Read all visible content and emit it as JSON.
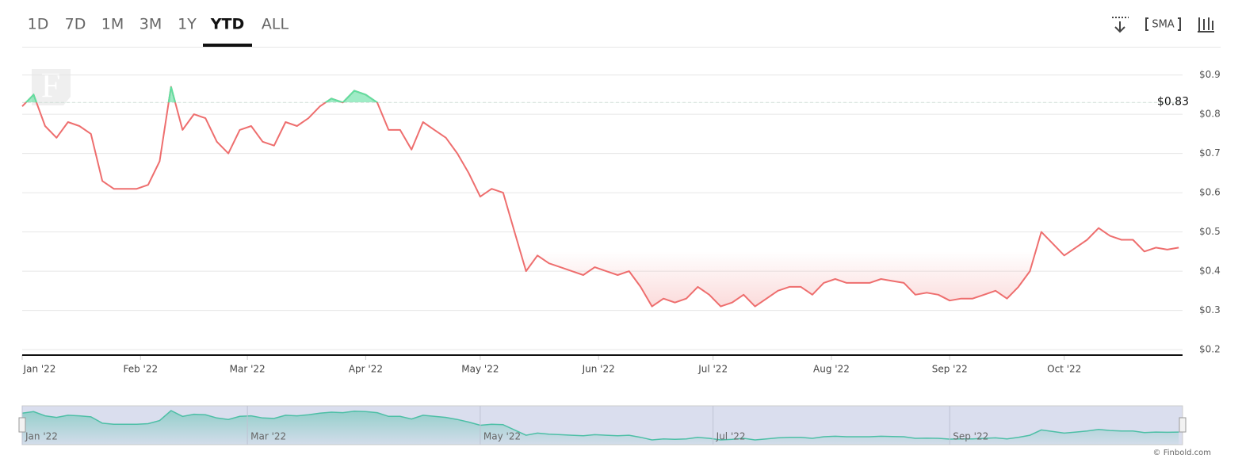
{
  "chart_data": {
    "type": "line",
    "ranges": [
      "1D",
      "7D",
      "1M",
      "3M",
      "1Y",
      "YTD",
      "ALL"
    ],
    "active_range": 5,
    "sma_label": "SMA",
    "watermark": "F",
    "credit": "© Finbold.com",
    "color": "#ee6e6e",
    "up_color": "#5fe0a0",
    "baseline": {
      "value": 0.83,
      "label": "$0.83"
    },
    "x": [
      0,
      3,
      6,
      9,
      12,
      15,
      18,
      21,
      24,
      27,
      30,
      33,
      36,
      39,
      42,
      45,
      48,
      51,
      54,
      57,
      60,
      63,
      66,
      69,
      72,
      75,
      78,
      81,
      84,
      87,
      90,
      93,
      96,
      99,
      102,
      105,
      108,
      111,
      114,
      117,
      120,
      123,
      126,
      129,
      132,
      135,
      138,
      141,
      144,
      147,
      150,
      153,
      156,
      159,
      162,
      165,
      168,
      171,
      174,
      177,
      180,
      183,
      186,
      189,
      192,
      195,
      198,
      201,
      204,
      207,
      210,
      213,
      216,
      219,
      222,
      225,
      228,
      231,
      234,
      237,
      240,
      243,
      246,
      249,
      252,
      255,
      258,
      261,
      264,
      267,
      270,
      273,
      276,
      279,
      282,
      285,
      288,
      291,
      294,
      297,
      300,
      303
    ],
    "values": [
      0.82,
      0.85,
      0.77,
      0.74,
      0.78,
      0.77,
      0.75,
      0.63,
      0.61,
      0.61,
      0.61,
      0.62,
      0.68,
      0.87,
      0.76,
      0.8,
      0.79,
      0.73,
      0.7,
      0.76,
      0.77,
      0.73,
      0.72,
      0.78,
      0.77,
      0.79,
      0.82,
      0.84,
      0.83,
      0.86,
      0.85,
      0.83,
      0.76,
      0.76,
      0.71,
      0.78,
      0.76,
      0.74,
      0.7,
      0.65,
      0.59,
      0.61,
      0.6,
      0.5,
      0.4,
      0.44,
      0.42,
      0.41,
      0.4,
      0.39,
      0.41,
      0.4,
      0.39,
      0.4,
      0.36,
      0.31,
      0.33,
      0.32,
      0.33,
      0.36,
      0.34,
      0.31,
      0.32,
      0.34,
      0.31,
      0.33,
      0.35,
      0.36,
      0.36,
      0.34,
      0.37,
      0.38,
      0.37,
      0.37,
      0.37,
      0.38,
      0.375,
      0.37,
      0.34,
      0.345,
      0.34,
      0.325,
      0.33,
      0.33,
      0.34,
      0.35,
      0.33,
      0.36,
      0.4,
      0.5,
      0.47,
      0.44,
      0.46,
      0.48,
      0.51,
      0.49,
      0.48,
      0.48,
      0.45,
      0.46,
      0.455,
      0.46
    ],
    "xlim": [
      0,
      304
    ],
    "xticks": [
      {
        "value": 0,
        "label": "Jan '22"
      },
      {
        "value": 31,
        "label": "Feb '22"
      },
      {
        "value": 59,
        "label": "Mar '22"
      },
      {
        "value": 90,
        "label": "Apr '22"
      },
      {
        "value": 120,
        "label": "May '22"
      },
      {
        "value": 151,
        "label": "Jun '22"
      },
      {
        "value": 181,
        "label": "Jul '22"
      },
      {
        "value": 212,
        "label": "Aug '22"
      },
      {
        "value": 243,
        "label": "Sep '22"
      },
      {
        "value": 273,
        "label": "Oct '22"
      }
    ],
    "ylim": [
      0.186,
      0.97
    ],
    "yticks": [
      {
        "value": 0.2,
        "label": "$0.2"
      },
      {
        "value": 0.3,
        "label": "$0.3"
      },
      {
        "value": 0.4,
        "label": "$0.4"
      },
      {
        "value": 0.5,
        "label": "$0.5"
      },
      {
        "value": 0.6,
        "label": "$0.6"
      },
      {
        "value": 0.7,
        "label": "$0.7"
      },
      {
        "value": 0.8,
        "label": "$0.8"
      },
      {
        "value": 0.9,
        "label": "$0.9"
      }
    ],
    "grid": true,
    "navigator": {
      "xticks": [
        {
          "value": 0,
          "label": "Jan '22"
        },
        {
          "value": 59,
          "label": "Mar '22"
        },
        {
          "value": 120,
          "label": "May '22"
        },
        {
          "value": 181,
          "label": "Jul '22"
        },
        {
          "value": 243,
          "label": "Sep '22"
        }
      ]
    }
  }
}
